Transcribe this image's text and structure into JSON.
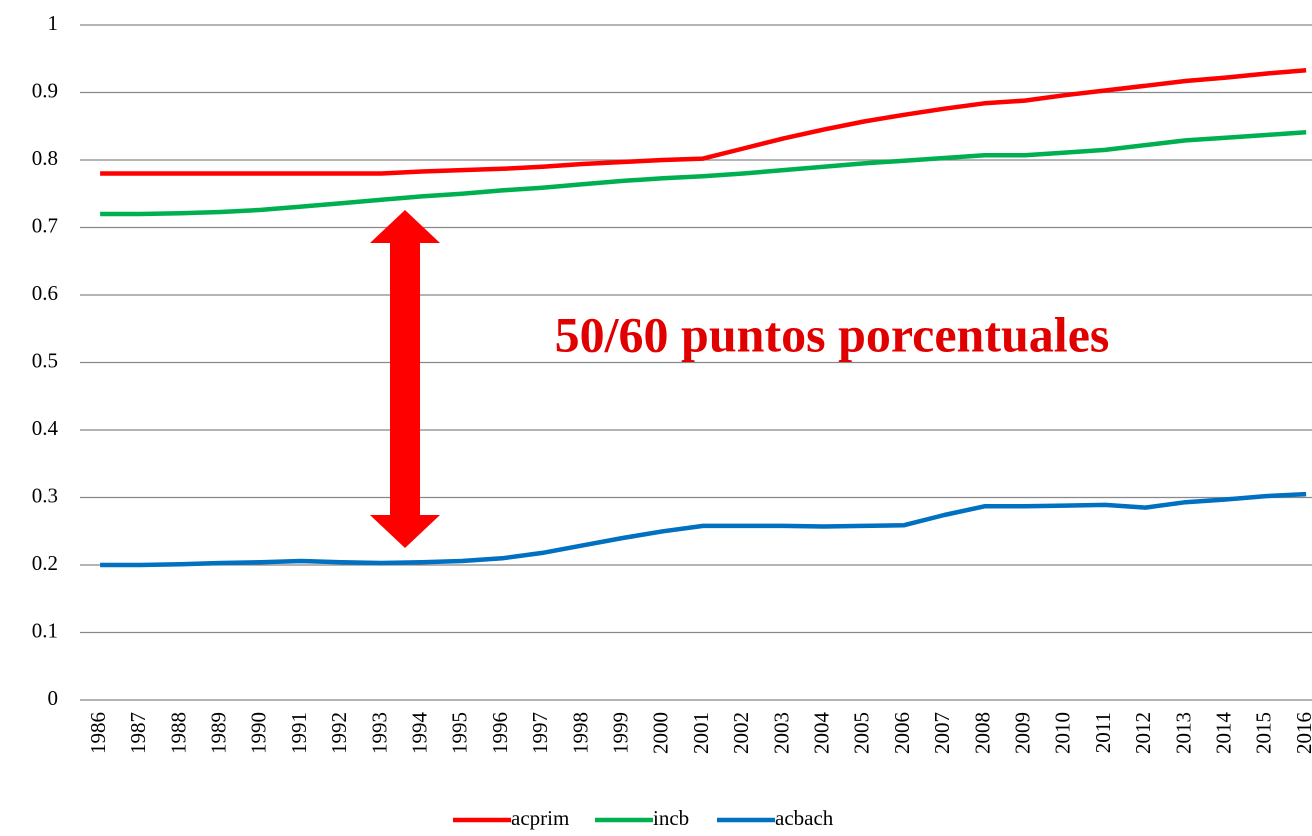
{
  "chart_data": {
    "type": "line",
    "categories": [
      "1986",
      "1987",
      "1988",
      "1989",
      "1990",
      "1991",
      "1992",
      "1993",
      "1994",
      "1995",
      "1996",
      "1997",
      "1998",
      "1999",
      "2000",
      "2001",
      "2002",
      "2003",
      "2004",
      "2005",
      "2006",
      "2007",
      "2008",
      "2009",
      "2010",
      "2011",
      "2012",
      "2013",
      "2014",
      "2015",
      "2016"
    ],
    "series": [
      {
        "name": "acprim",
        "color": "#ff0000",
        "values": [
          0.78,
          0.78,
          0.78,
          0.78,
          0.78,
          0.78,
          0.78,
          0.78,
          0.783,
          0.785,
          0.787,
          0.79,
          0.794,
          0.797,
          0.8,
          0.802,
          0.817,
          0.832,
          0.845,
          0.857,
          0.867,
          0.876,
          0.884,
          0.888,
          0.896,
          0.903,
          0.91,
          0.917,
          0.922,
          0.928,
          0.933
        ]
      },
      {
        "name": "incb",
        "color": "#00b050",
        "values": [
          0.72,
          0.72,
          0.721,
          0.723,
          0.726,
          0.731,
          0.736,
          0.741,
          0.746,
          0.75,
          0.755,
          0.759,
          0.764,
          0.769,
          0.773,
          0.776,
          0.78,
          0.785,
          0.79,
          0.795,
          0.799,
          0.803,
          0.807,
          0.807,
          0.811,
          0.815,
          0.822,
          0.829,
          0.833,
          0.837,
          0.841
        ]
      },
      {
        "name": "acbach",
        "color": "#0070c0",
        "values": [
          0.2,
          0.2,
          0.201,
          0.203,
          0.204,
          0.206,
          0.204,
          0.203,
          0.204,
          0.206,
          0.21,
          0.218,
          0.229,
          0.24,
          0.25,
          0.258,
          0.258,
          0.258,
          0.257,
          0.258,
          0.259,
          0.274,
          0.287,
          0.287,
          0.288,
          0.289,
          0.285,
          0.293,
          0.297,
          0.302,
          0.305
        ]
      }
    ],
    "ylim": [
      0,
      1
    ],
    "yticks": [
      0,
      0.1,
      0.2,
      0.3,
      0.4,
      0.5,
      0.6,
      0.7,
      0.8,
      0.9,
      1
    ],
    "grid": true,
    "legend": "bottom",
    "annotation": "50/60 puntos porcentuales"
  }
}
